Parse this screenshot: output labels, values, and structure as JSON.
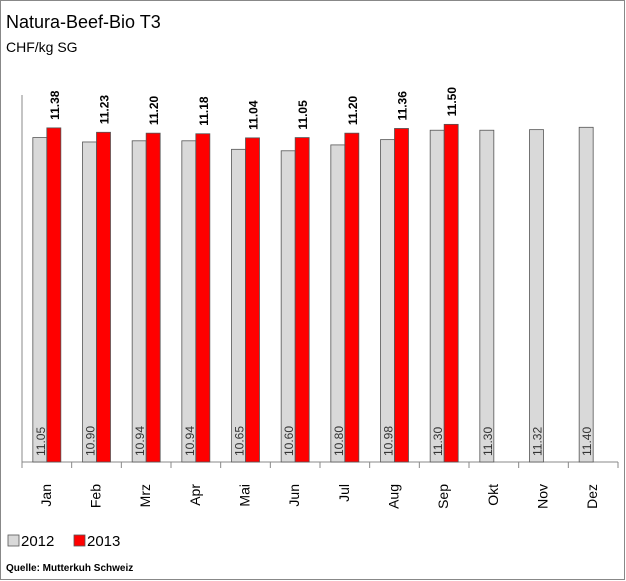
{
  "chart_data": {
    "type": "bar",
    "title": "Natura-Beef-Bio T3",
    "subtitle": "CHF/kg SG",
    "categories": [
      "Jan",
      "Feb",
      "Mrz",
      "Apr",
      "Mai",
      "Jun",
      "Jul",
      "Aug",
      "Sep",
      "Okt",
      "Nov",
      "Dez"
    ],
    "series": [
      {
        "name": "2012",
        "color": "#d9d9d9",
        "values": [
          11.05,
          10.9,
          10.94,
          10.94,
          10.65,
          10.6,
          10.8,
          10.98,
          11.3,
          11.3,
          11.32,
          11.4
        ],
        "value_labels": [
          "11.05",
          "10.90",
          "10.94",
          "10.94",
          "10.65",
          "10.60",
          "10.80",
          "10.98",
          "11.30",
          "11.30",
          "11.32",
          "11.40"
        ]
      },
      {
        "name": "2013",
        "color": "#ff0000",
        "values": [
          11.38,
          11.23,
          11.2,
          11.18,
          11.04,
          11.05,
          11.2,
          11.36,
          11.5,
          null,
          null,
          null
        ],
        "value_labels": [
          "11.38",
          "11.23",
          "11.20",
          "11.18",
          "11.04",
          "11.05",
          "11.20",
          "11.36",
          "11.50",
          null,
          null,
          null
        ]
      }
    ],
    "ylim": [
      0,
      12.5
    ],
    "source": "Quelle: Mutterkuh Schweiz"
  }
}
